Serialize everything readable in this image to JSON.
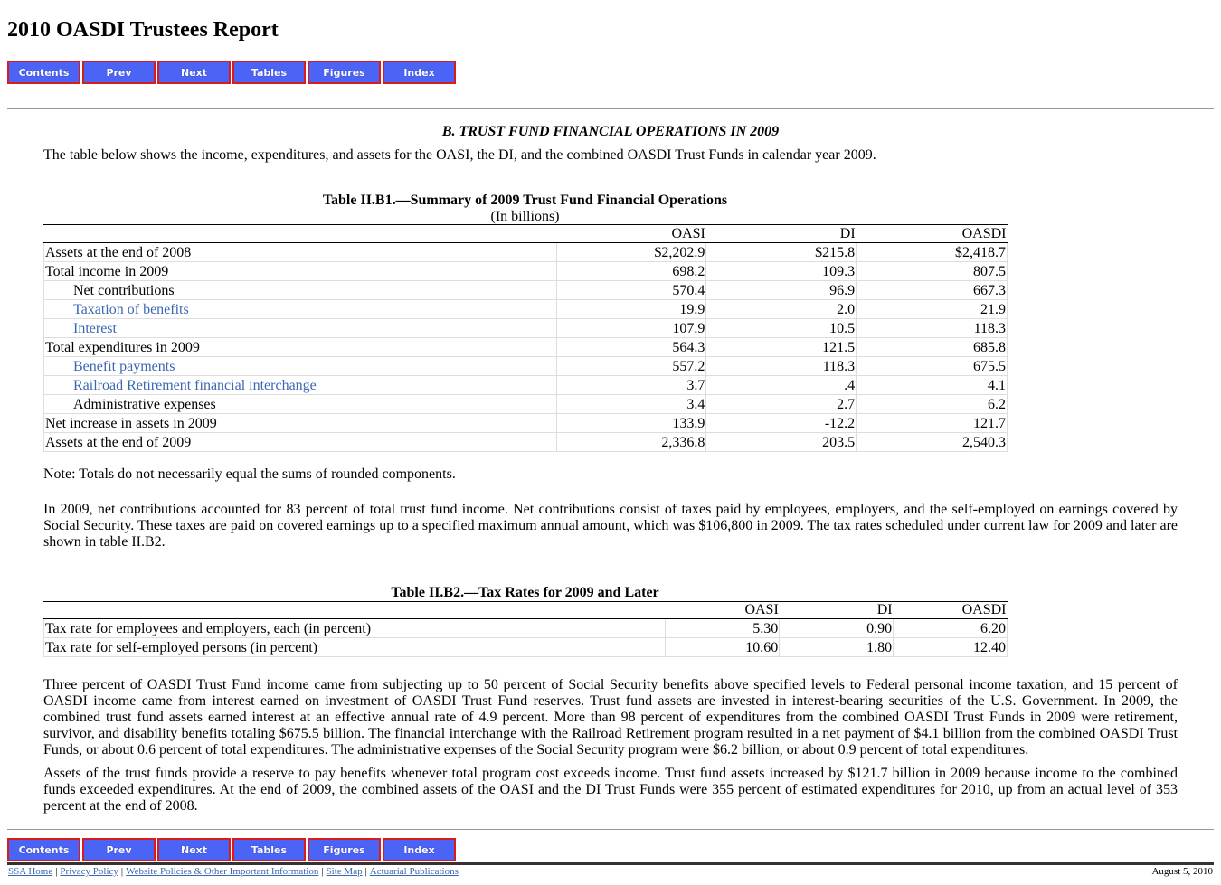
{
  "page_title": "2010 OASDI Trustees Report",
  "nav": [
    "Contents",
    "Prev",
    "Next",
    "Tables",
    "Figures",
    "Index"
  ],
  "section_heading": "B. TRUST FUND FINANCIAL OPERATIONS IN 2009",
  "intro": "The table below shows the income, expenditures, and assets for the OASI, the DI, and the combined OASDI Trust Funds in calendar year 2009.",
  "table1": {
    "caption": "Table II.B1.—Summary of 2009 Trust Fund Financial Operations",
    "subcaption": "(In billions)",
    "columns": [
      "OASI",
      "DI",
      "OASDI"
    ],
    "rows": [
      {
        "label": "Assets at the end of 2008",
        "values": [
          "$2,202.9",
          "$215.8",
          "$2,418.7"
        ]
      },
      {
        "label": "Total income in 2009",
        "values": [
          "698.2",
          "109.3",
          "807.5"
        ]
      },
      {
        "label": "Net contributions",
        "values": [
          "570.4",
          "96.9",
          "667.3"
        ]
      },
      {
        "label": "Taxation of benefits",
        "values": [
          "19.9",
          "2.0",
          "21.9"
        ]
      },
      {
        "label": "Interest",
        "values": [
          "107.9",
          "10.5",
          "118.3"
        ]
      },
      {
        "label": "Total expenditures in 2009",
        "values": [
          "564.3",
          "121.5",
          "685.8"
        ]
      },
      {
        "label": "Benefit payments",
        "values": [
          "557.2",
          "118.3",
          "675.5"
        ]
      },
      {
        "label": "Railroad Retirement financial interchange",
        "values": [
          "3.7",
          ".4",
          "4.1"
        ]
      },
      {
        "label": "Administrative expenses",
        "values": [
          "3.4",
          "2.7",
          "6.2"
        ]
      },
      {
        "label": "Net increase in assets in 2009",
        "values": [
          "133.9",
          "-12.2",
          "121.7"
        ]
      },
      {
        "label": "Assets at the end of 2009",
        "values": [
          "2,336.8",
          "203.5",
          "2,540.3"
        ]
      }
    ]
  },
  "note": "Note: Totals do not necessarily equal the sums of rounded components.",
  "para1": "In 2009, net contributions accounted for 83 percent of total trust fund income. Net contributions consist of taxes paid by employees, employers, and the self-employed on earnings covered by Social Security. These taxes are paid on covered earnings up to a specified maximum annual amount, which was $106,800 in 2009. The tax rates scheduled under current law for 2009 and later are shown in table II.B2.",
  "table2": {
    "caption": "Table II.B2.—Tax Rates for 2009 and Later",
    "columns": [
      "OASI",
      "DI",
      "OASDI"
    ],
    "rows": [
      {
        "label": "Tax rate for employees and employers, each (in percent)",
        "values": [
          "5.30",
          "0.90",
          "6.20"
        ]
      },
      {
        "label": "Tax rate for self-employed persons (in percent)",
        "values": [
          "10.60",
          "1.80",
          "12.40"
        ]
      }
    ]
  },
  "para2": "Three percent of OASDI Trust Fund income came from subjecting up to 50 percent of Social Security benefits above specified levels to Federal personal income taxation, and 15 percent of OASDI income came from interest earned on investment of OASDI Trust Fund reserves. Trust fund assets are invested in interest-bearing securities of the U.S. Government. In 2009, the combined trust fund assets earned interest at an effective annual rate of 4.9 percent. More than 98 percent of expenditures from the combined OASDI Trust Funds in 2009 were retirement, survivor, and disability benefits totaling $675.5 billion. The financial interchange with the Railroad Retirement program resulted in a net payment of $4.1 billion from the combined OASDI Trust Funds, or about 0.6 percent of total expenditures. The administrative expenses of the Social Security program were $6.2 billion, or about 0.9 percent of total expenditures.",
  "para3": "Assets of the trust funds provide a reserve to pay benefits whenever total program cost exceeds income. Trust fund assets increased by $121.7 billion in 2009 because income to the combined funds exceeded expenditures. At the end of 2009, the combined assets of the OASI and the DI Trust Funds were 355 percent of estimated expenditures for 2010, up from an actual level of 353 percent at the end of 2008.",
  "footer": {
    "links": [
      "SSA Home",
      "Privacy Policy",
      "Website Policies & Other Important Information",
      "Site Map",
      "Actuarial Publications"
    ],
    "date": "August 5, 2010"
  },
  "colors": {
    "nav_button_fill": "#4c64f5",
    "nav_button_border": "#d81b1b",
    "link": "#3b67b1"
  }
}
